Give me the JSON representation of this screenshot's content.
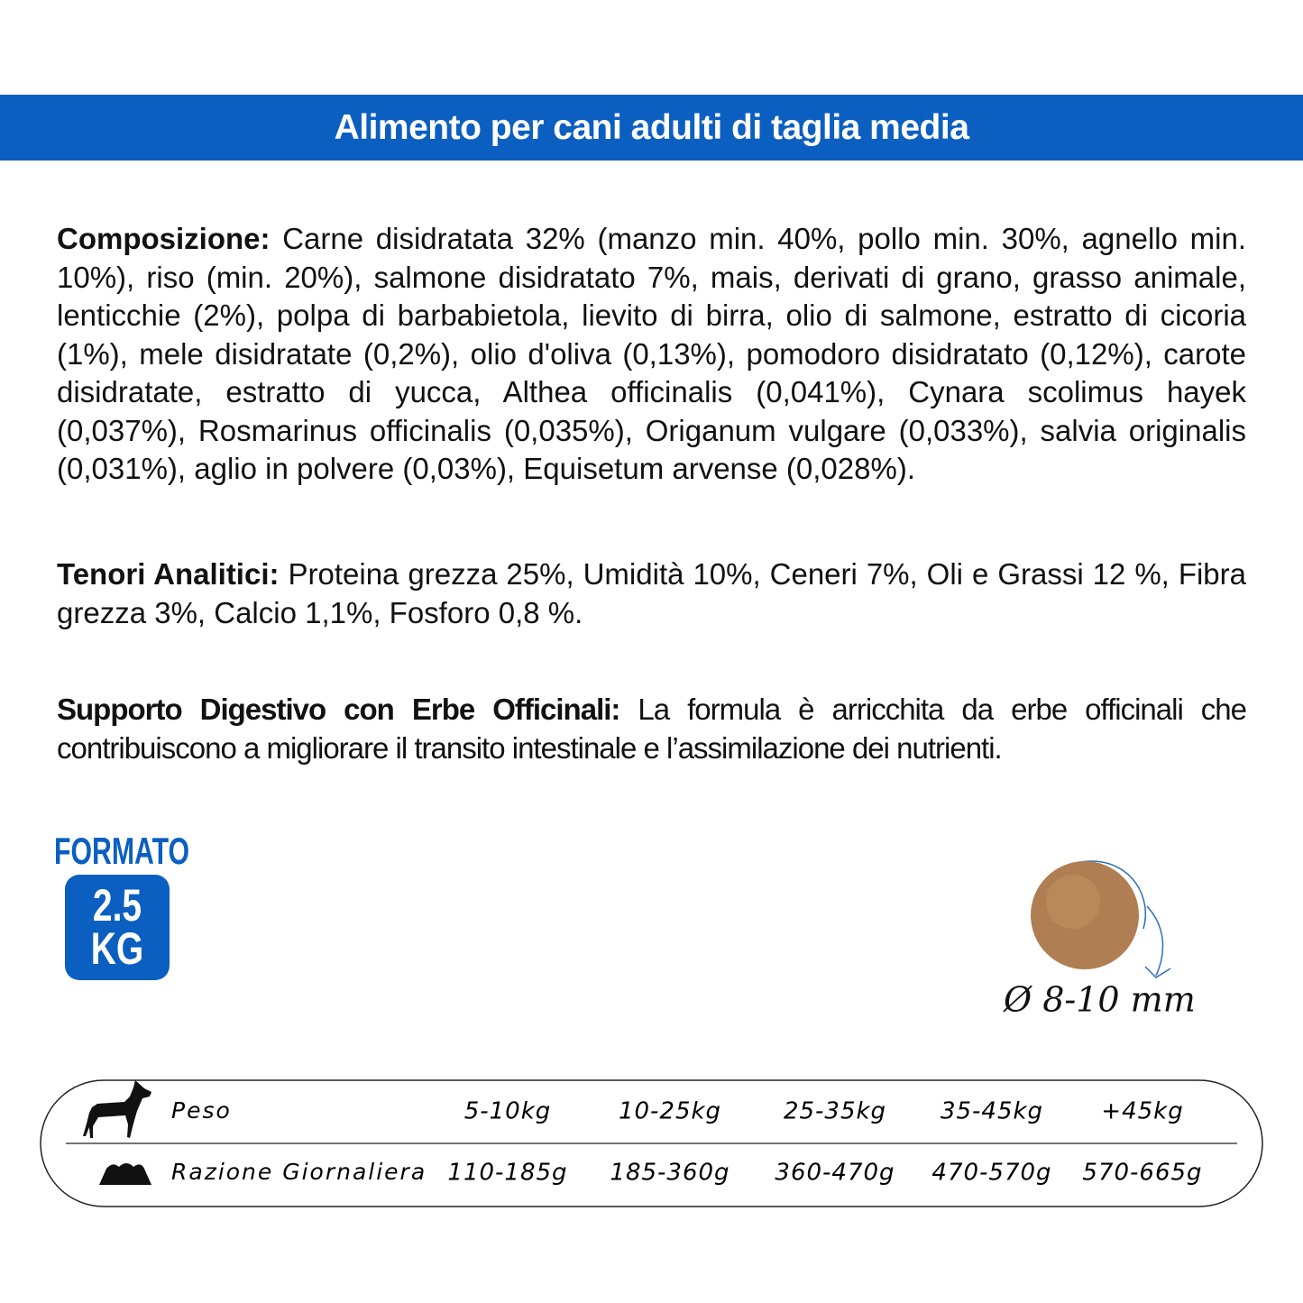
{
  "header": {
    "title": "Alimento per cani adulti di taglia media"
  },
  "composition": {
    "label": "Composizione:",
    "text": "Carne disidratata 32% (manzo min. 40%, pollo min. 30%, agnello min. 10%), riso (min. 20%), salmone disidratato 7%, mais, derivati di grano, grasso animale, lenticchie (2%), polpa di barbabietola, lievito di birra, olio di salmone, estratto di cicoria (1%), mele disidratate (0,2%), olio d'oliva (0,13%), pomodoro disidratato (0,12%), carote disidratate, estratto di yucca, Althea officinalis (0,041%), Cynara scolimus hayek (0,037%), Rosmarinus officinalis (0,035%), Origanum vulgare (0,033%), salvia originalis (0,031%), aglio in polvere (0,03%), Equisetum arvense (0,028%)."
  },
  "analytics": {
    "label": "Tenori Analitici:",
    "text": "Proteina grezza 25%, Umidità 10%, Ceneri 7%, Oli e Grassi 12 %, Fibra grezza 3%, Calcio 1,1%, Fosforo 0,8 %."
  },
  "digestive": {
    "label": "Supporto Digestivo con Erbe Officinali:",
    "text": "La formula è arricchita da erbe officinali che contribuiscono a migliorare il transito intestinale e l’assimilazione dei nutrienti."
  },
  "format": {
    "label": "FORMATO",
    "value": "2.5",
    "unit": "KG"
  },
  "kibble": {
    "label": "Ø 8-10 mm"
  },
  "table": {
    "rows": [
      {
        "label": "Peso",
        "cells": [
          "5-10kg",
          "10-25kg",
          "25-35kg",
          "35-45kg",
          "+45kg"
        ]
      },
      {
        "label": "Razione Giornaliera",
        "cells": [
          "110-185g",
          "185-360g",
          "360-470g",
          "470-570g",
          "570-665g"
        ]
      }
    ]
  }
}
